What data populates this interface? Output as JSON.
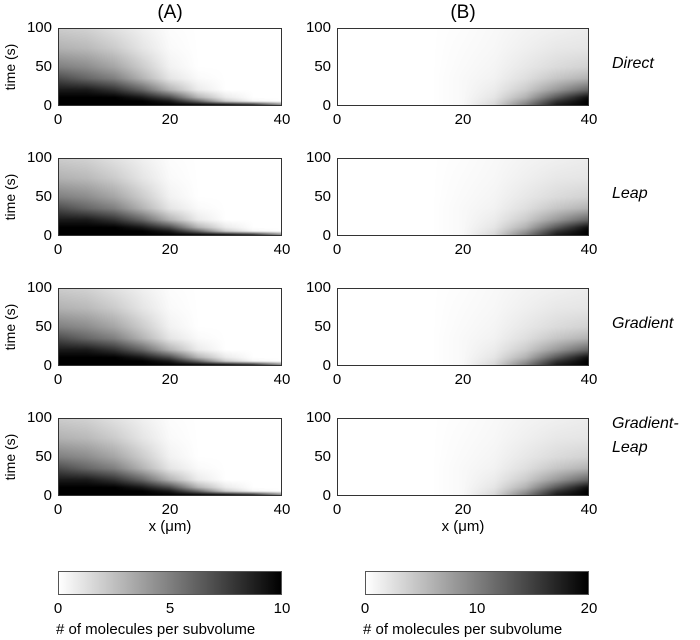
{
  "panels": [
    {
      "label": "(A)"
    },
    {
      "label": "(B)"
    }
  ],
  "methods": [
    "Direct",
    "Leap",
    "Gradient",
    "Gradient-\nLeap"
  ],
  "ylabel": "time (s)",
  "xlabel": "x (μm)",
  "yticks": [
    "0",
    "50",
    "100"
  ],
  "xticks": [
    "0",
    "20",
    "40"
  ],
  "colorbars": [
    {
      "ticks": [
        "0",
        "5",
        "10"
      ],
      "label": "# of molecules per subvolume",
      "range": [
        0,
        10
      ]
    },
    {
      "ticks": [
        "0",
        "10",
        "20"
      ],
      "label": "# of molecules per subvolume",
      "range": [
        0,
        20
      ]
    }
  ],
  "chart_data": {
    "type": "heatmap",
    "colormap": "gray-reversed",
    "xlabel": "x (μm)",
    "ylabel": "time (s)",
    "xlim": [
      0,
      40
    ],
    "ylim": [
      0,
      100
    ],
    "x": [
      0,
      5,
      10,
      15,
      20,
      25,
      30,
      35,
      40
    ],
    "t": [
      0,
      5,
      10,
      20,
      35,
      50,
      75,
      100
    ],
    "panels": [
      {
        "name": "A",
        "clim": [
          0,
          10
        ],
        "z": [
          [
            10,
            10,
            10,
            10,
            10,
            10,
            10,
            9,
            5
          ],
          [
            10,
            10,
            10,
            10,
            9,
            6,
            2,
            0.3,
            0
          ],
          [
            10,
            10,
            10,
            9,
            7,
            3,
            0.8,
            0,
            0
          ],
          [
            9,
            9,
            8,
            6,
            3,
            0.8,
            0,
            0,
            0
          ],
          [
            7,
            6,
            5,
            3,
            1,
            0.2,
            0,
            0,
            0
          ],
          [
            5,
            4.5,
            3.5,
            2,
            0.5,
            0,
            0,
            0,
            0
          ],
          [
            3,
            2.7,
            2,
            1,
            0.2,
            0,
            0,
            0,
            0
          ],
          [
            2,
            1.8,
            1.2,
            0.6,
            0.1,
            0,
            0,
            0,
            0
          ]
        ]
      },
      {
        "name": "B",
        "clim": [
          0,
          20
        ],
        "z": [
          [
            0,
            0,
            0,
            0,
            0.5,
            3,
            10,
            18,
            20
          ],
          [
            0,
            0,
            0,
            0,
            0.5,
            2.5,
            8,
            16,
            20
          ],
          [
            0,
            0,
            0,
            0,
            0.5,
            2,
            6,
            13,
            19
          ],
          [
            0,
            0,
            0,
            0,
            0.5,
            1.5,
            4,
            8,
            12
          ],
          [
            0,
            0,
            0,
            0,
            0.5,
            1,
            2.5,
            4.5,
            6
          ],
          [
            0,
            0,
            0,
            0,
            0.4,
            0.8,
            1.8,
            2.8,
            3.5
          ],
          [
            0,
            0,
            0,
            0,
            0.3,
            0.6,
            1.2,
            1.8,
            2
          ],
          [
            0,
            0,
            0,
            0,
            0.2,
            0.5,
            0.9,
            1.2,
            1.5
          ]
        ]
      }
    ]
  }
}
